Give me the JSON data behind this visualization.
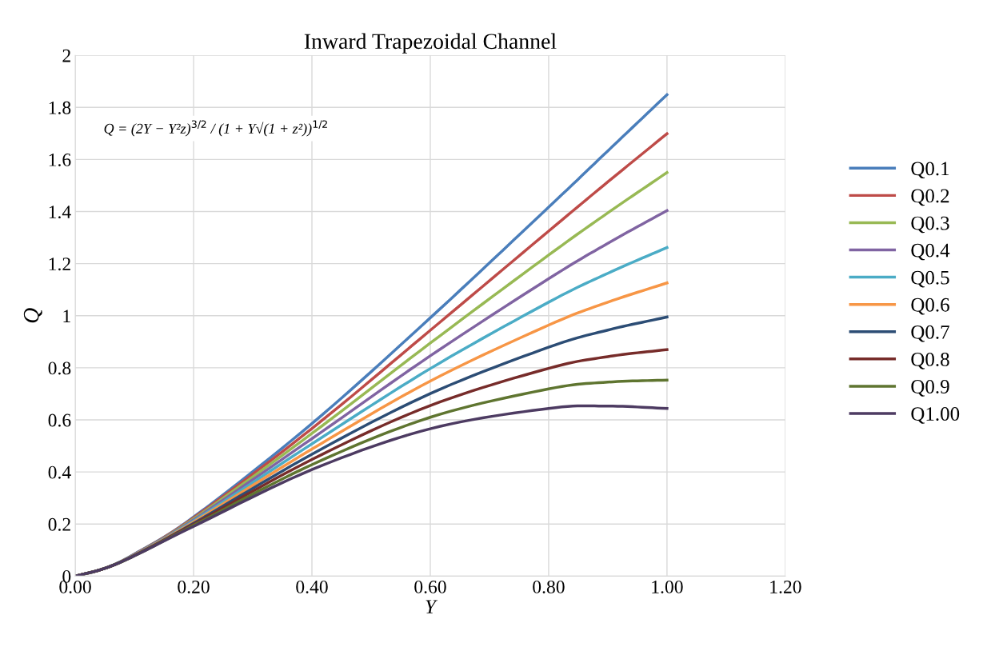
{
  "chart_data": {
    "type": "line",
    "title": "Inward Trapezoidal Channel",
    "xlabel": "Y",
    "ylabel": "Q",
    "annotations": [
      "Q = (2Y − Y²z)$^{3/2}$ / (1 + Y√(1 + z²))$^{1/2}$"
    ],
    "x": [
      0,
      0.05,
      0.1,
      0.2,
      0.4,
      0.6,
      0.8,
      0.9,
      1.0
    ],
    "series": [
      {
        "name": "Q0.1",
        "color": "#4a7ebb",
        "values": [
          0,
          0.03,
          0.085,
          0.227,
          0.586,
          0.992,
          1.417,
          1.633,
          1.849
        ]
      },
      {
        "name": "Q0.2",
        "color": "#be4b48",
        "values": [
          0,
          0.03,
          0.084,
          0.224,
          0.567,
          0.944,
          1.325,
          1.514,
          1.699
        ]
      },
      {
        "name": "Q0.3",
        "color": "#98b954",
        "values": [
          0,
          0.03,
          0.083,
          0.22,
          0.548,
          0.895,
          1.233,
          1.395,
          1.55
        ]
      },
      {
        "name": "Q0.4",
        "color": "#8064a2",
        "values": [
          0,
          0.03,
          0.083,
          0.216,
          0.528,
          0.846,
          1.142,
          1.278,
          1.404
        ]
      },
      {
        "name": "Q0.5",
        "color": "#4bacc6",
        "values": [
          0,
          0.03,
          0.082,
          0.212,
          0.508,
          0.797,
          1.052,
          1.163,
          1.262
        ]
      },
      {
        "name": "Q0.6",
        "color": "#f79646",
        "values": [
          0,
          0.03,
          0.081,
          0.208,
          0.488,
          0.749,
          0.964,
          1.052,
          1.126
        ]
      },
      {
        "name": "Q0.7",
        "color": "#2c4d75",
        "values": [
          0,
          0.03,
          0.08,
          0.203,
          0.468,
          0.701,
          0.879,
          0.945,
          0.995
        ]
      },
      {
        "name": "Q0.8",
        "color": "#772c2a",
        "values": [
          0,
          0.03,
          0.079,
          0.199,
          0.448,
          0.655,
          0.798,
          0.843,
          0.87
        ]
      },
      {
        "name": "Q0.9",
        "color": "#5f7530",
        "values": [
          0,
          0.03,
          0.078,
          0.195,
          0.428,
          0.61,
          0.719,
          0.745,
          0.753
        ]
      },
      {
        "name": "Q1.00",
        "color": "#4d3b62",
        "values": [
          0,
          0.03,
          0.078,
          0.191,
          0.409,
          0.566,
          0.644,
          0.653,
          0.644
        ]
      }
    ],
    "xlim": [
      0,
      1.2
    ],
    "xticks": [
      {
        "value": 0,
        "label": "0.00"
      },
      {
        "value": 0.2,
        "label": "0.20"
      },
      {
        "value": 0.4,
        "label": "0.40"
      },
      {
        "value": 0.6,
        "label": "0.60"
      },
      {
        "value": 0.8,
        "label": "0.80"
      },
      {
        "value": 1.0,
        "label": "1.00"
      },
      {
        "value": 1.2,
        "label": "1.20"
      }
    ],
    "ylim": [
      0,
      2
    ],
    "yticks": [
      0,
      0.2,
      0.4,
      0.6,
      0.8,
      1,
      1.2,
      1.4,
      1.6,
      1.8,
      2
    ],
    "grid": true,
    "legend": "right",
    "marker": "none",
    "line_style": "solid"
  }
}
